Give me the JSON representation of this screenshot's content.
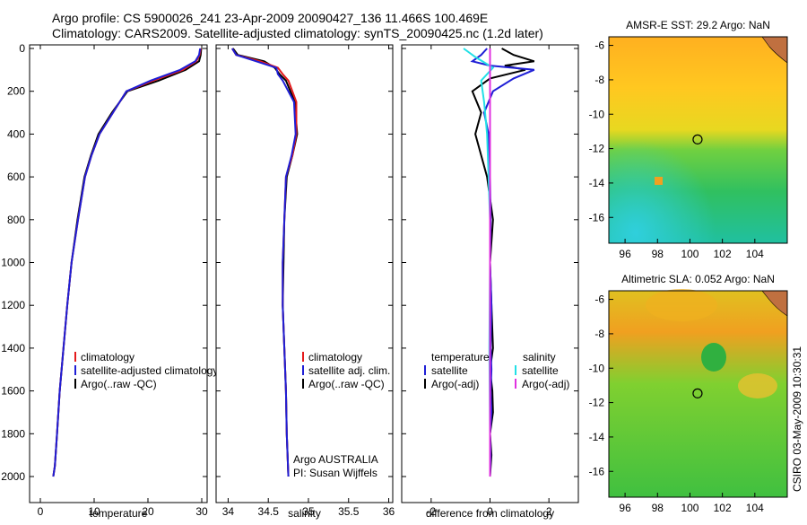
{
  "header": {
    "line1": "Argo profile: CS 5900026_241 23-Apr-2009 20090427_136 11.466S 100.469E",
    "line2": "Climatology: CARS2009. Satellite-adjusted climatology: synTS_20090425.nc (1.2d later)"
  },
  "side_label": "CSIRO 03-May-2009 10:30:31",
  "colors": {
    "climatology": "#e41a1c",
    "satellite": "#1f1fd6",
    "argo": "#000000",
    "salinity_satellite": "#22e0e6",
    "salinity_argo": "#e031e0"
  },
  "chart_data": [
    {
      "type": "line",
      "name": "temperature",
      "xlabel": "temperature",
      "ylabel": "",
      "xlim": [
        -2,
        31
      ],
      "ylim": [
        2060,
        0
      ],
      "xticks": [
        0,
        10,
        20,
        30
      ],
      "yticks": [
        0,
        200,
        400,
        600,
        800,
        1000,
        1200,
        1400,
        1600,
        1800,
        2000
      ],
      "legend": [
        "climatology",
        "satellite-adjusted climatology",
        "Argo(..raw -QC)"
      ],
      "series": [
        {
          "name": "climatology",
          "color_key": "climatology",
          "x": [
            29.8,
            29.6,
            29.0,
            26.5,
            21.0,
            16.0,
            13.5,
            11.0,
            9.5,
            8.3,
            7.0,
            5.8,
            5.0,
            4.3,
            3.6,
            3.1,
            2.7,
            2.4
          ],
          "y": [
            0,
            30,
            60,
            100,
            150,
            200,
            300,
            400,
            500,
            600,
            800,
            1000,
            1200,
            1400,
            1600,
            1800,
            1950,
            2000
          ]
        },
        {
          "name": "satellite-adjusted climatology",
          "color_key": "satellite",
          "x": [
            29.7,
            29.5,
            28.8,
            26.0,
            20.5,
            16.0,
            13.5,
            11.0,
            9.5,
            8.3,
            7.0,
            5.8,
            5.0,
            4.3,
            3.6,
            3.1,
            2.7,
            2.4
          ],
          "y": [
            0,
            30,
            60,
            100,
            150,
            200,
            300,
            400,
            500,
            600,
            800,
            1000,
            1200,
            1400,
            1600,
            1800,
            1950,
            2000
          ]
        },
        {
          "name": "Argo(..raw -QC)",
          "color_key": "argo",
          "x": [
            29.9,
            29.8,
            29.5,
            27.0,
            22.0,
            16.2,
            13.3,
            10.8,
            9.4,
            8.2,
            6.9,
            5.8,
            5.0,
            4.3,
            3.6,
            3.1,
            2.7,
            2.4
          ],
          "y": [
            0,
            30,
            60,
            100,
            150,
            200,
            300,
            400,
            500,
            600,
            800,
            1000,
            1200,
            1400,
            1600,
            1800,
            1950,
            2000
          ]
        }
      ]
    },
    {
      "type": "line",
      "name": "salinity",
      "xlabel": "salinity",
      "ylabel": "",
      "xlim": [
        33.85,
        36.05
      ],
      "ylim": [
        2060,
        0
      ],
      "xticks": [
        34,
        34.5,
        35,
        35.5,
        36
      ],
      "xticklabels": [
        "34",
        "34.5",
        "35",
        "35.5",
        "36"
      ],
      "legend": [
        "climatology",
        "satellite adj. clim.",
        "Argo(..raw -QC)"
      ],
      "annotation_lines": [
        "Argo AUSTRALIA",
        "PI: Susan Wijffels"
      ],
      "series": [
        {
          "name": "climatology",
          "color_key": "climatology",
          "x": [
            34.05,
            34.1,
            34.4,
            34.62,
            34.68,
            34.75,
            34.85,
            34.85,
            34.8,
            34.72,
            34.7,
            34.68,
            34.68,
            34.7,
            34.72,
            34.73,
            34.75
          ],
          "y": [
            0,
            30,
            60,
            90,
            120,
            150,
            250,
            400,
            500,
            600,
            800,
            1000,
            1200,
            1400,
            1600,
            1800,
            2000
          ]
        },
        {
          "name": "satellite adj. clim.",
          "color_key": "satellite",
          "x": [
            34.05,
            34.1,
            34.35,
            34.6,
            34.62,
            34.68,
            34.82,
            34.84,
            34.79,
            34.72,
            34.7,
            34.68,
            34.68,
            34.7,
            34.72,
            34.73,
            34.75
          ],
          "y": [
            0,
            30,
            60,
            90,
            120,
            150,
            250,
            400,
            500,
            600,
            800,
            1000,
            1200,
            1400,
            1600,
            1800,
            2000
          ]
        },
        {
          "name": "Argo(..raw -QC)",
          "color_key": "argo",
          "x": [
            34.06,
            34.12,
            34.45,
            34.58,
            34.64,
            34.72,
            34.83,
            34.86,
            34.8,
            34.73,
            34.7,
            34.69,
            34.68,
            34.7,
            34.72,
            34.73,
            34.75
          ],
          "y": [
            0,
            30,
            60,
            90,
            120,
            150,
            250,
            400,
            500,
            600,
            800,
            1000,
            1200,
            1400,
            1600,
            1800,
            2000
          ]
        }
      ]
    },
    {
      "type": "line",
      "name": "difference",
      "xlabel": "difference from climatology",
      "ylabel": "",
      "xlim": [
        -3,
        3
      ],
      "ylim": [
        2060,
        0
      ],
      "xticks": [
        -2,
        0,
        2
      ],
      "legend_left_title": "temperature",
      "legend_left": [
        "satellite",
        "Argo(-adj)"
      ],
      "legend_right_title": "salinity",
      "legend_right": [
        "satellite",
        "Argo(-adj)"
      ],
      "series": [
        {
          "name": "temperature satellite",
          "color_key": "satellite",
          "x": [
            -0.1,
            -0.3,
            -0.6,
            0.0,
            1.5,
            0.8,
            0.1,
            -0.2,
            -0.05,
            0.0,
            0.02,
            0.0,
            0.05,
            0.02,
            0.05,
            0.02,
            0.05,
            0.0,
            0.02,
            0.0
          ],
          "y": [
            0,
            30,
            60,
            80,
            100,
            140,
            200,
            300,
            400,
            600,
            800,
            1000,
            1200,
            1400,
            1500,
            1600,
            1700,
            1800,
            1900,
            2000
          ]
        },
        {
          "name": "temperature Argo(-adj)",
          "color_key": "argo",
          "x": [
            0.4,
            0.8,
            1.5,
            0.5,
            1.2,
            0.0,
            -0.6,
            -0.3,
            -0.5,
            -0.1,
            0.1,
            0.0,
            0.05,
            0.1,
            0.0,
            0.08,
            0.1,
            0.0,
            0.05,
            0.0
          ],
          "y": [
            0,
            30,
            60,
            80,
            100,
            140,
            200,
            300,
            400,
            600,
            800,
            1000,
            1200,
            1400,
            1500,
            1600,
            1700,
            1800,
            1900,
            2000
          ]
        },
        {
          "name": "salinity satellite",
          "color_key": "salinity_satellite",
          "x": [
            -0.9,
            -0.5,
            0.1,
            -0.3,
            -0.2,
            -0.1,
            -0.05,
            0.0,
            0.0,
            -0.02,
            0.0,
            0.0
          ],
          "y": [
            0,
            40,
            90,
            150,
            250,
            400,
            600,
            800,
            1000,
            1400,
            1800,
            2000
          ]
        },
        {
          "name": "salinity Argo(-adj)",
          "color_key": "salinity_argo",
          "x": [
            0.0,
            0.0,
            0.0
          ],
          "y": [
            0,
            1000,
            2000
          ]
        }
      ]
    },
    {
      "type": "heatmap",
      "name": "sst_map",
      "title": "AMSR-E SST: 29.2 Argo: NaN",
      "xlim": [
        95,
        106
      ],
      "ylim": [
        -17.5,
        -5.5
      ],
      "xticks": [
        96,
        98,
        100,
        102,
        104
      ],
      "yticks": [
        -6,
        -8,
        -10,
        -12,
        -14,
        -16
      ],
      "argo_marker": {
        "lon": 100.469,
        "lat": -11.466
      }
    },
    {
      "type": "heatmap",
      "name": "sla_map",
      "title": "Altimetric SLA: 0.052 Argo: NaN",
      "xlim": [
        95,
        106
      ],
      "ylim": [
        -17.5,
        -5.5
      ],
      "xticks": [
        96,
        98,
        100,
        102,
        104
      ],
      "yticks": [
        -6,
        -8,
        -10,
        -12,
        -14,
        -16
      ],
      "argo_marker": {
        "lon": 100.469,
        "lat": -11.466
      }
    }
  ]
}
